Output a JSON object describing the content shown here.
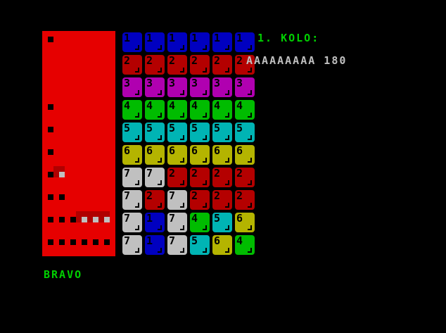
{
  "header": {
    "round_label": "1. KOLO:",
    "player_line": "AAAAAAAAA 180"
  },
  "status": {
    "message": "BRAVO"
  },
  "colors": {
    "1": "#0000c0",
    "2": "#b40000",
    "3": "#b000b0",
    "4": "#00bc00",
    "5": "#00b4b4",
    "6": "#b4b400",
    "7": "#c0c0c0",
    "panel": "#e60000",
    "text_green": "#00d000",
    "text_gray": "#c0c0c0"
  },
  "grid": [
    [
      "1",
      "1",
      "1",
      "1",
      "1",
      "1"
    ],
    [
      "2",
      "2",
      "2",
      "2",
      "2",
      "2"
    ],
    [
      "3",
      "3",
      "3",
      "3",
      "3",
      "3"
    ],
    [
      "4",
      "4",
      "4",
      "4",
      "4",
      "4"
    ],
    [
      "5",
      "5",
      "5",
      "5",
      "5",
      "5"
    ],
    [
      "6",
      "6",
      "6",
      "6",
      "6",
      "6"
    ],
    [
      "7",
      "7",
      "2",
      "2",
      "2",
      "2"
    ],
    [
      "7",
      "2",
      "7",
      "2",
      "2",
      "2"
    ],
    [
      "7",
      "1",
      "7",
      "4",
      "5",
      "6"
    ],
    [
      "7",
      "1",
      "7",
      "5",
      "6",
      "4"
    ]
  ],
  "row_markers": [
    1,
    0,
    0,
    1,
    1,
    1,
    1,
    2,
    3,
    6
  ]
}
